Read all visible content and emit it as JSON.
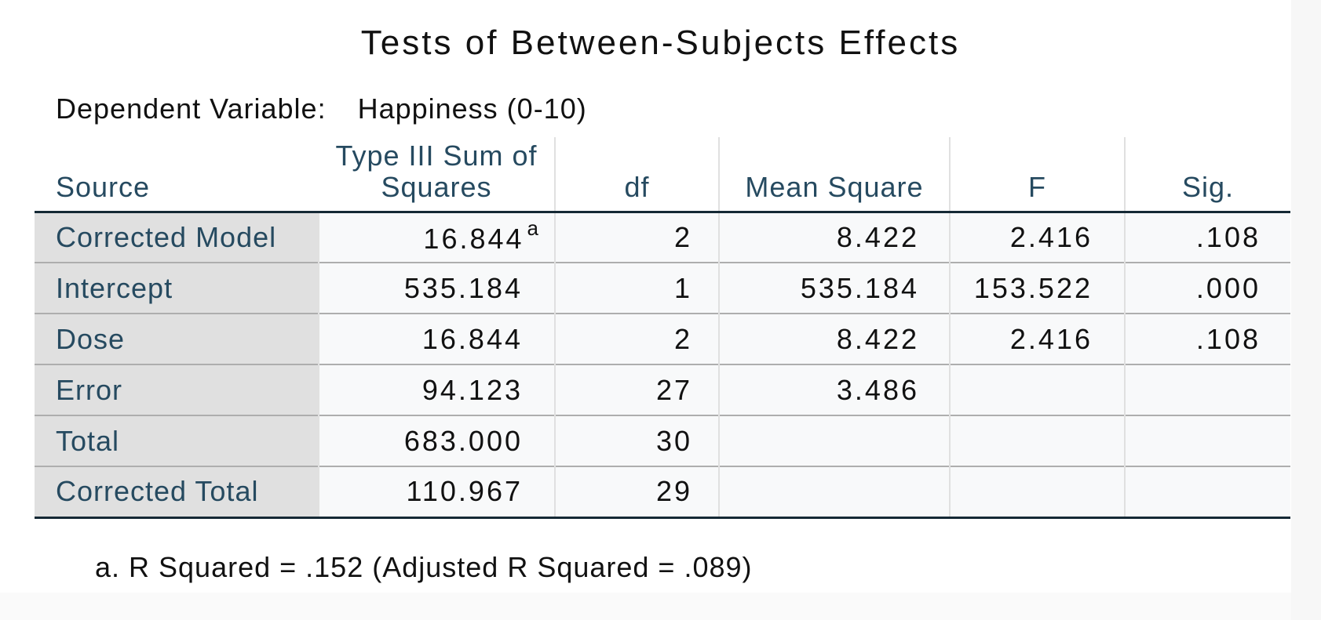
{
  "title": "Tests of Between-Subjects Effects",
  "dependent_variable": {
    "label": "Dependent Variable:",
    "value": "Happiness (0-10)"
  },
  "table": {
    "headers": [
      "Source",
      "Type III Sum of Squares",
      "df",
      "Mean Square",
      "F",
      "Sig."
    ],
    "rows": [
      {
        "source": "Corrected Model",
        "ss": "16.844",
        "ss_note": "a",
        "df": "2",
        "ms": "8.422",
        "f": "2.416",
        "sig": ".108"
      },
      {
        "source": "Intercept",
        "ss": "535.184",
        "ss_note": "",
        "df": "1",
        "ms": "535.184",
        "f": "153.522",
        "sig": ".000"
      },
      {
        "source": "Dose",
        "ss": "16.844",
        "ss_note": "",
        "df": "2",
        "ms": "8.422",
        "f": "2.416",
        "sig": ".108"
      },
      {
        "source": "Error",
        "ss": "94.123",
        "ss_note": "",
        "df": "27",
        "ms": "3.486",
        "f": "",
        "sig": ""
      },
      {
        "source": "Total",
        "ss": "683.000",
        "ss_note": "",
        "df": "30",
        "ms": "",
        "f": "",
        "sig": ""
      },
      {
        "source": "Corrected Total",
        "ss": "110.967",
        "ss_note": "",
        "df": "29",
        "ms": "",
        "f": "",
        "sig": ""
      }
    ]
  },
  "footnote": "a. R Squared = .152 (Adjusted R Squared = .089)",
  "colors": {
    "header_text": "#264a60",
    "row_label_bg": "#e0e0e0",
    "cell_bg": "#f8f9fa",
    "rule_dark": "#152935",
    "rule_light": "#aeaeae"
  }
}
